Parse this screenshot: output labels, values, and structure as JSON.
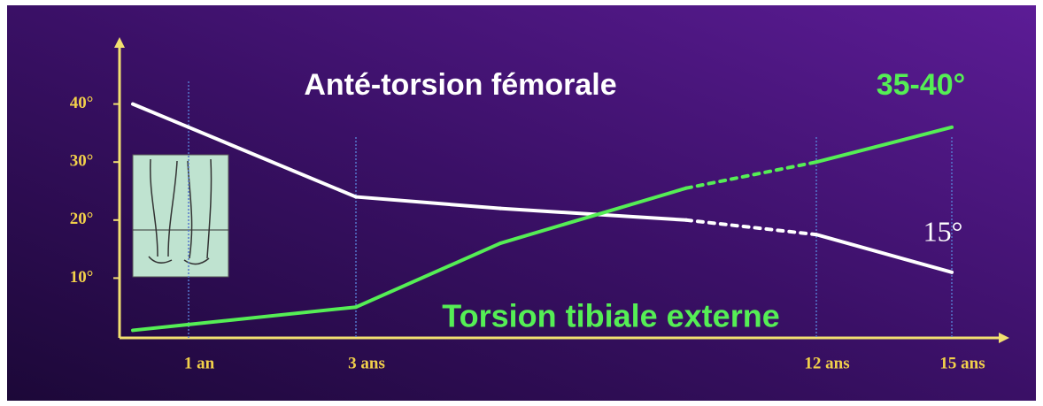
{
  "chart_data": {
    "type": "line",
    "annotations": [
      "Anté-torsion fémorale",
      "35-40°",
      "15°",
      "Torsion tibiale externe"
    ],
    "categories": [
      null,
      "1 an",
      "3 ans",
      null,
      null,
      "12 ans",
      "15 ans"
    ],
    "series": [
      {
        "name": "Anté-torsion fémorale",
        "color": "#ffffff",
        "values": [
          40,
          36,
          24,
          22,
          20,
          17.5,
          11
        ]
      },
      {
        "name": "Torsion tibiale externe",
        "color": "#55ee55",
        "values": [
          1,
          2,
          5,
          16,
          25.5,
          30,
          36
        ]
      }
    ],
    "ylim": [
      0,
      50
    ],
    "yticks": [
      {
        "value": 10,
        "label": "10°"
      },
      {
        "value": 20,
        "label": "20°"
      },
      {
        "value": 30,
        "label": "30°"
      },
      {
        "value": 40,
        "label": "40°"
      }
    ]
  }
}
